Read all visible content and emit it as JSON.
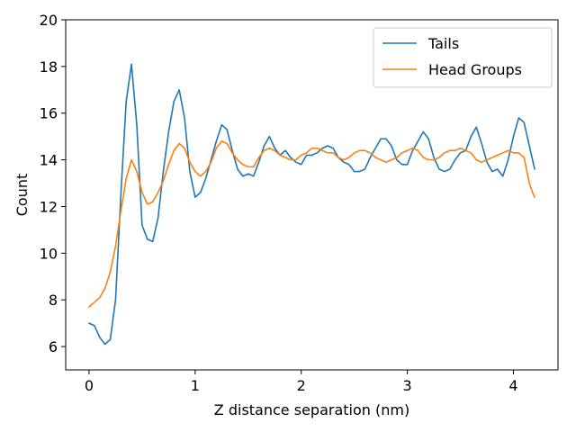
{
  "chart_data": {
    "type": "line",
    "xlabel": "Z distance separation (nm)",
    "ylabel": "Count",
    "xlim": [
      -0.22,
      4.42
    ],
    "ylim": [
      5,
      20
    ],
    "xticks": [
      0,
      1,
      2,
      3,
      4
    ],
    "yticks": [
      6,
      8,
      10,
      12,
      14,
      16,
      18,
      20
    ],
    "grid": false,
    "legend_position": "top-right",
    "series": [
      {
        "name": "Tails",
        "color": "#1f77b4",
        "x": [
          0,
          0.05,
          0.1,
          0.15,
          0.2,
          0.25,
          0.3,
          0.35,
          0.4,
          0.45,
          0.5,
          0.55,
          0.6,
          0.65,
          0.7,
          0.75,
          0.8,
          0.85,
          0.9,
          0.95,
          1.0,
          1.05,
          1.1,
          1.15,
          1.2,
          1.25,
          1.3,
          1.35,
          1.4,
          1.45,
          1.5,
          1.55,
          1.6,
          1.65,
          1.7,
          1.75,
          1.8,
          1.85,
          1.9,
          1.95,
          2.0,
          2.05,
          2.1,
          2.15,
          2.2,
          2.25,
          2.3,
          2.35,
          2.4,
          2.45,
          2.5,
          2.55,
          2.6,
          2.65,
          2.7,
          2.75,
          2.8,
          2.85,
          2.9,
          2.95,
          3.0,
          3.05,
          3.1,
          3.15,
          3.2,
          3.25,
          3.3,
          3.35,
          3.4,
          3.45,
          3.5,
          3.55,
          3.6,
          3.65,
          3.7,
          3.75,
          3.8,
          3.85,
          3.9,
          3.95,
          4.0,
          4.05,
          4.1,
          4.15,
          4.2
        ],
        "values": [
          7.0,
          6.9,
          6.4,
          6.1,
          6.3,
          8.0,
          12.5,
          16.5,
          18.1,
          15.5,
          11.2,
          10.6,
          10.5,
          11.5,
          13.5,
          15.2,
          16.5,
          17.0,
          15.8,
          13.5,
          12.4,
          12.6,
          13.2,
          14.0,
          14.8,
          15.5,
          15.3,
          14.4,
          13.6,
          13.3,
          13.4,
          13.3,
          13.9,
          14.6,
          15.0,
          14.5,
          14.2,
          14.4,
          14.1,
          13.9,
          13.8,
          14.2,
          14.2,
          14.3,
          14.5,
          14.6,
          14.5,
          14.1,
          13.9,
          13.8,
          13.5,
          13.5,
          13.6,
          14.1,
          14.5,
          14.9,
          14.9,
          14.6,
          14.0,
          13.8,
          13.8,
          14.4,
          14.8,
          15.2,
          14.9,
          14.1,
          13.6,
          13.5,
          13.6,
          14.0,
          14.3,
          14.4,
          15.0,
          15.4,
          14.7,
          13.9,
          13.5,
          13.6,
          13.3,
          14.0,
          15.0,
          15.8,
          15.6,
          14.6,
          13.6
        ]
      },
      {
        "name": "Head Groups",
        "color": "#ff7f0e",
        "x": [
          0,
          0.05,
          0.1,
          0.15,
          0.2,
          0.25,
          0.3,
          0.35,
          0.4,
          0.45,
          0.5,
          0.55,
          0.6,
          0.65,
          0.7,
          0.75,
          0.8,
          0.85,
          0.9,
          0.95,
          1.0,
          1.05,
          1.1,
          1.15,
          1.2,
          1.25,
          1.3,
          1.35,
          1.4,
          1.45,
          1.5,
          1.55,
          1.6,
          1.65,
          1.7,
          1.75,
          1.8,
          1.85,
          1.9,
          1.95,
          2.0,
          2.05,
          2.1,
          2.15,
          2.2,
          2.25,
          2.3,
          2.35,
          2.4,
          2.45,
          2.5,
          2.55,
          2.6,
          2.65,
          2.7,
          2.75,
          2.8,
          2.85,
          2.9,
          2.95,
          3.0,
          3.05,
          3.1,
          3.15,
          3.2,
          3.25,
          3.3,
          3.35,
          3.4,
          3.45,
          3.5,
          3.55,
          3.6,
          3.65,
          3.7,
          3.75,
          3.8,
          3.85,
          3.9,
          3.95,
          4.0,
          4.05,
          4.1,
          4.15,
          4.18,
          4.2
        ],
        "values": [
          7.7,
          7.9,
          8.1,
          8.5,
          9.2,
          10.3,
          11.8,
          13.2,
          14.0,
          13.5,
          12.6,
          12.1,
          12.2,
          12.6,
          13.1,
          13.8,
          14.4,
          14.7,
          14.5,
          13.9,
          13.5,
          13.3,
          13.5,
          13.9,
          14.5,
          14.8,
          14.7,
          14.3,
          14.0,
          13.8,
          13.7,
          13.7,
          14.1,
          14.4,
          14.5,
          14.4,
          14.2,
          14.1,
          14.0,
          14.0,
          14.2,
          14.3,
          14.5,
          14.5,
          14.4,
          14.3,
          14.3,
          14.1,
          14.0,
          14.1,
          14.3,
          14.4,
          14.4,
          14.3,
          14.1,
          14.0,
          13.9,
          14.0,
          14.1,
          14.3,
          14.4,
          14.5,
          14.4,
          14.1,
          14.0,
          14.0,
          14.1,
          14.3,
          14.4,
          14.4,
          14.5,
          14.4,
          14.3,
          14.0,
          13.9,
          14.0,
          14.1,
          14.2,
          14.3,
          14.4,
          14.3,
          14.3,
          14.1,
          13.0,
          12.6,
          12.4
        ]
      }
    ]
  }
}
